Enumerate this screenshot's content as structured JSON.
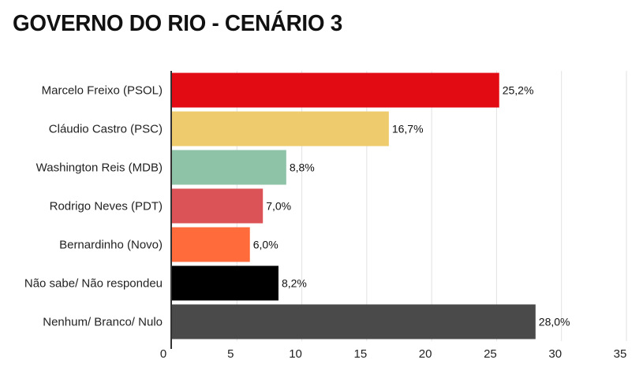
{
  "chart_data": {
    "type": "bar",
    "orientation": "horizontal",
    "title": "GOVERNO DO RIO - CENÁRIO 3",
    "categories": [
      "Marcelo Freixo (PSOL)",
      "Cláudio Castro (PSC)",
      "Washington Reis (MDB)",
      "Rodrigo Neves (PDT)",
      "Bernardinho (Novo)",
      "Não sabe/ Não respondeu",
      "Nenhum/ Branco/ Nulo"
    ],
    "values": [
      25.2,
      16.7,
      8.8,
      7.0,
      6.0,
      8.2,
      28.0
    ],
    "value_labels": [
      "25,2%",
      "16,7%",
      "8,8%",
      "7,0%",
      "6,0%",
      "8,2%",
      "28,0%"
    ],
    "colors": [
      "#e30b13",
      "#eecb6c",
      "#8ec3a8",
      "#dc5357",
      "#ff6b3b",
      "#000000",
      "#4a4a4a"
    ],
    "xlim": [
      0,
      35
    ],
    "xticks": [
      0,
      5,
      10,
      15,
      20,
      25,
      30,
      35
    ],
    "xtick_labels": [
      "0",
      "5",
      "10",
      "15",
      "20",
      "25",
      "30",
      "35"
    ],
    "xlabel": "",
    "ylabel": "",
    "grid": true,
    "legend": "none"
  }
}
